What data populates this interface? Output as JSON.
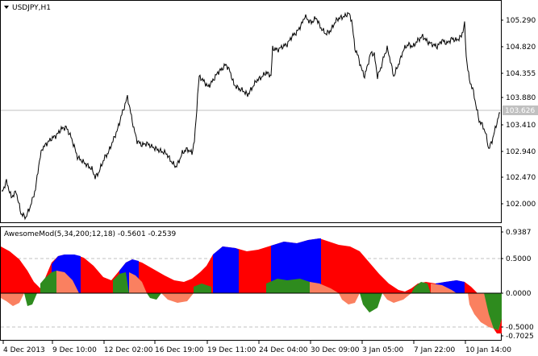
{
  "main_chart": {
    "symbol_title": "USDJPY,H1",
    "price_labels": [
      "105.290",
      "104.820",
      "104.355",
      "103.880",
      "103.410",
      "102.940",
      "102.470",
      "102.000"
    ],
    "current_price": "103.626",
    "colors": {
      "price_line": "#000000",
      "current_line": "#c0c0c0",
      "price_tag_bg": "#c0c0c0",
      "price_tag_text": "#ffffff"
    }
  },
  "indicator": {
    "title": "AwesomeMod(5,34,200;12,18) -0.5601 -0.2539",
    "scale_labels": [
      "0.9387",
      "0.5000",
      "0.0000",
      "-0.5000",
      "-0.7025"
    ],
    "colors": {
      "red": "#ff0000",
      "blue": "#0000ff",
      "green": "#2e8b1e",
      "salmon": "#fa8060",
      "levels": "#c0c0c0"
    }
  },
  "time_axis": {
    "labels": [
      "4 Dec 2013",
      "9 Dec 10:00",
      "12 Dec 02:00",
      "16 Dec 19:00",
      "19 Dec 11:00",
      "24 Dec 04:00",
      "30 Dec 09:00",
      "3 Jan 05:00",
      "7 Jan 22:00",
      "10 Jan 14:00"
    ]
  }
}
